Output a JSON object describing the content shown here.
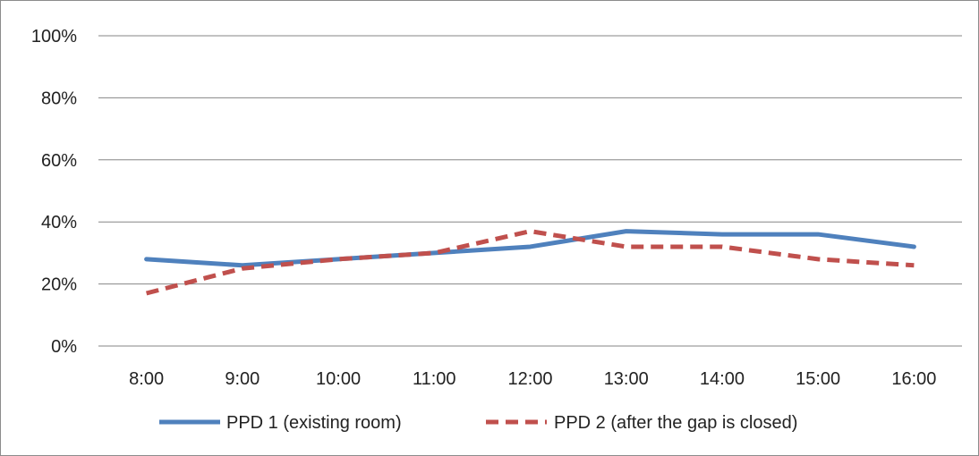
{
  "chart_data": {
    "type": "line",
    "categories": [
      "8:00",
      "9:00",
      "10:00",
      "11:00",
      "12:00",
      "13:00",
      "14:00",
      "15:00",
      "16:00"
    ],
    "series": [
      {
        "name": "PPD 1 (existing room)",
        "values": [
          0.28,
          0.26,
          0.28,
          0.3,
          0.32,
          0.37,
          0.36,
          0.36,
          0.32
        ],
        "color": "#4f81bd",
        "style": "solid"
      },
      {
        "name": "PPD 2 (after the gap is closed)",
        "values": [
          0.17,
          0.25,
          0.28,
          0.3,
          0.37,
          0.32,
          0.32,
          0.28,
          0.26
        ],
        "color": "#c0504d",
        "style": "dashed"
      }
    ],
    "yticks": [
      "0%",
      "20%",
      "40%",
      "60%",
      "80%",
      "100%"
    ],
    "ylim": [
      0,
      1
    ],
    "grid": true,
    "legend_position": "bottom",
    "title": "",
    "xlabel": "",
    "ylabel": ""
  }
}
